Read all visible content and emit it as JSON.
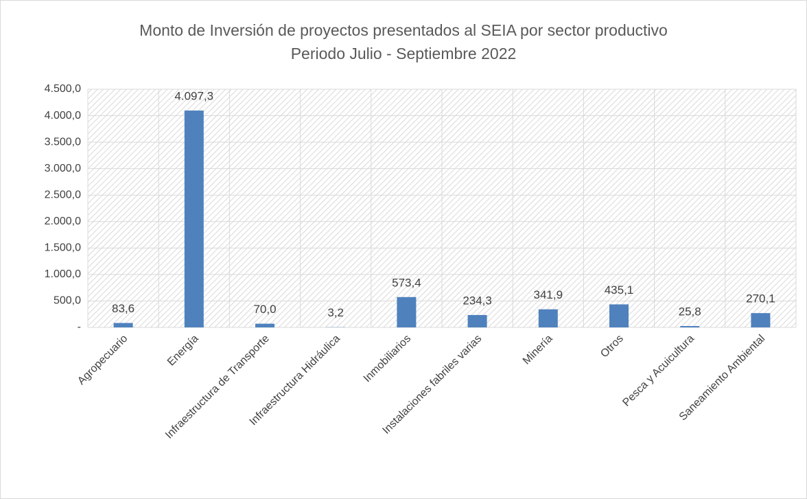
{
  "chart_data": {
    "type": "bar",
    "title": "Monto de Inversión de proyectos presentados al SEIA por sector productivo",
    "subtitle": "Periodo Julio - Septiembre 2022",
    "categories": [
      "Agropecuario",
      "Energía",
      "Infraestructura de Transporte",
      "Infraestructura Hidráulica",
      "Inmobiliarios",
      "Instalaciones fabriles varias",
      "Minería",
      "Otros",
      "Pesca y Acuicultura",
      "Saneamiento Ambiental"
    ],
    "values": [
      83.6,
      4097.3,
      70.0,
      3.2,
      573.4,
      234.3,
      341.9,
      435.1,
      25.8,
      270.1
    ],
    "value_labels": [
      "83,6",
      "4.097,3",
      "70,0",
      "3,2",
      "573,4",
      "234,3",
      "341,9",
      "435,1",
      "25,8",
      "270,1"
    ],
    "color": "#4f81bd",
    "ylim": [
      0,
      4500
    ],
    "yticks": [
      {
        "value": 0,
        "label": "-"
      },
      {
        "value": 500,
        "label": "500,0"
      },
      {
        "value": 1000,
        "label": "1.000,0"
      },
      {
        "value": 1500,
        "label": "1.500,0"
      },
      {
        "value": 2000,
        "label": "2.000,0"
      },
      {
        "value": 2500,
        "label": "2.500,0"
      },
      {
        "value": 3000,
        "label": "3.000,0"
      },
      {
        "value": 3500,
        "label": "3.500,0"
      },
      {
        "value": 4000,
        "label": "4.000,0"
      },
      {
        "value": 4500,
        "label": "4.500,0"
      }
    ],
    "grid": true
  }
}
